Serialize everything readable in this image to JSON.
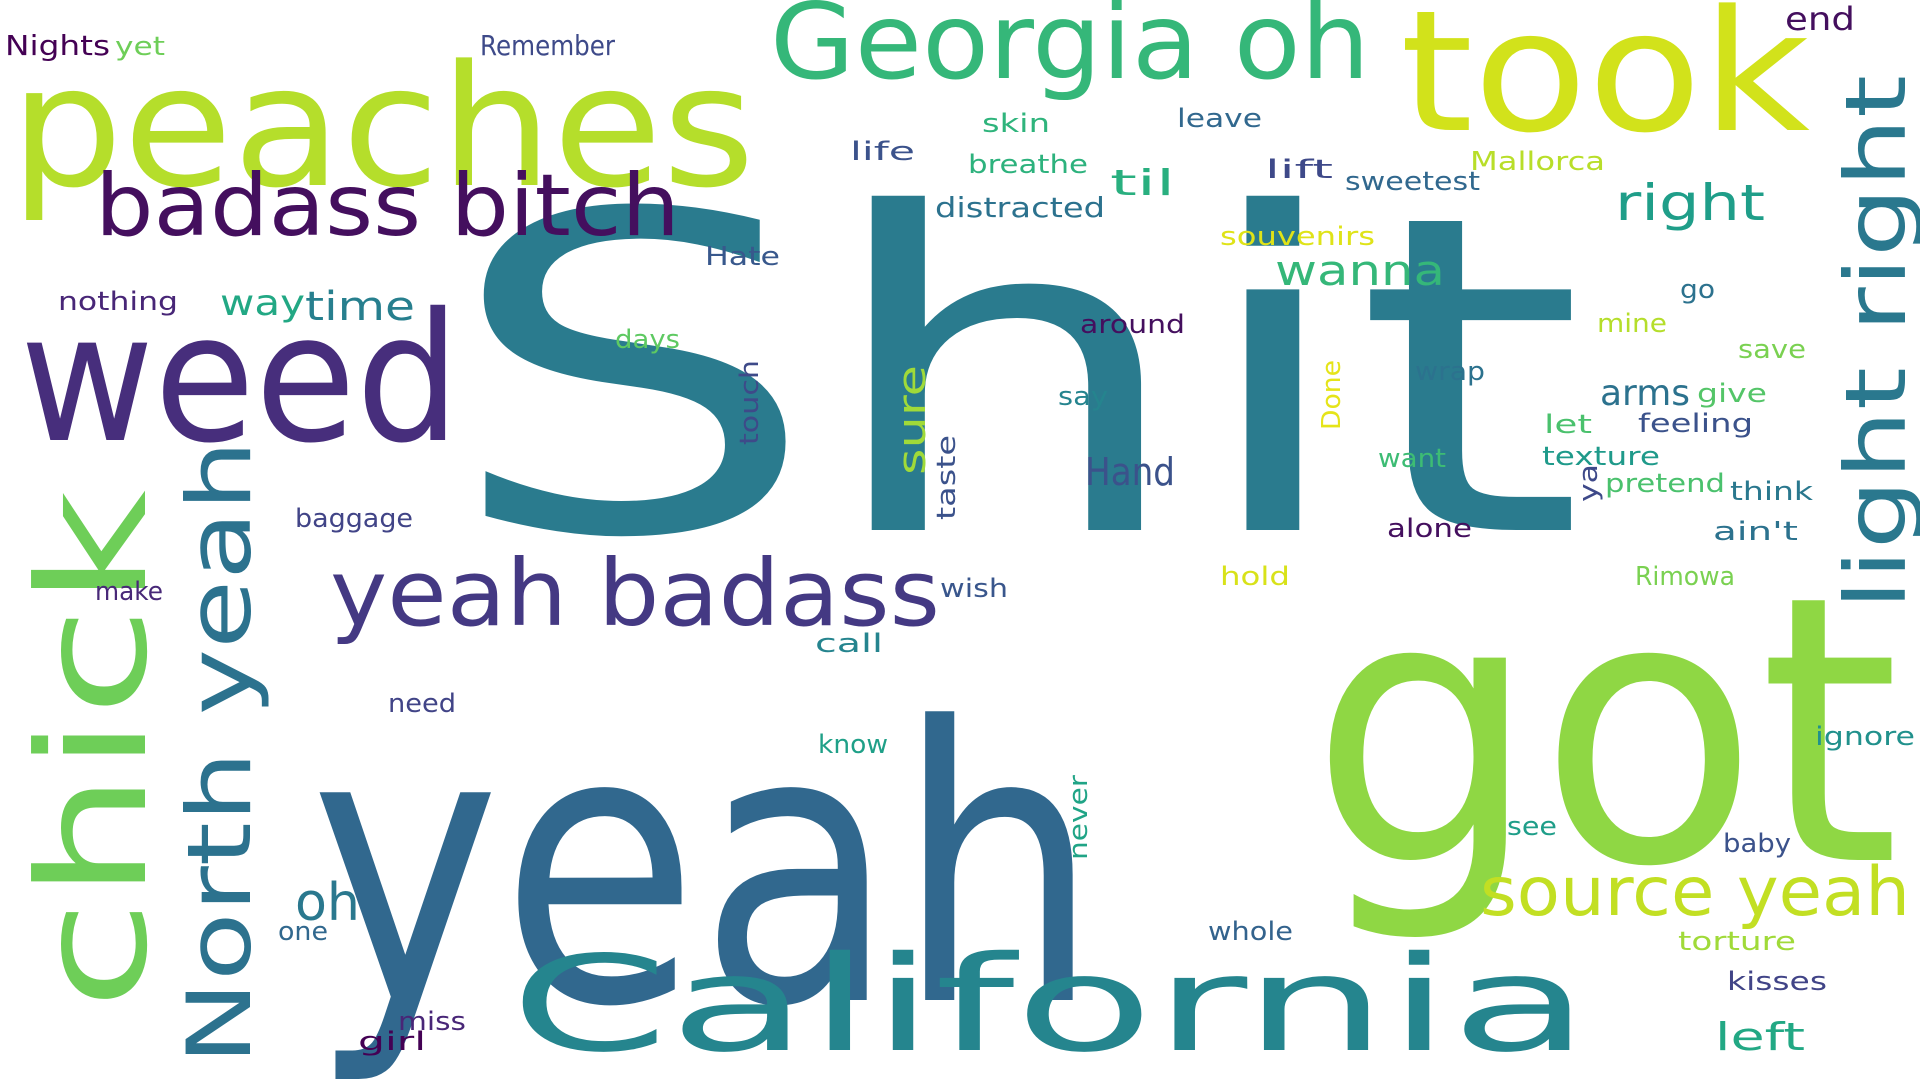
{
  "words": [
    {
      "text": "Shit",
      "color": "#2a7b8e"
    },
    {
      "text": "yeah",
      "color": "#31688e"
    },
    {
      "text": "got",
      "color": "#8fd744"
    },
    {
      "text": "took",
      "color": "#d2e21b"
    },
    {
      "text": "peaches",
      "color": "#b5de2b"
    },
    {
      "text": "weed",
      "color": "#472e7c"
    },
    {
      "text": "chick",
      "color": "#6ece58"
    },
    {
      "text": "California",
      "color": "#25858e"
    },
    {
      "text": "Georgia oh",
      "color": "#35b779"
    },
    {
      "text": "badass bitch",
      "color": "#440f5e"
    },
    {
      "text": "yeah badass",
      "color": "#443983"
    },
    {
      "text": "North yeah",
      "color": "#2c728e"
    },
    {
      "text": "light right",
      "color": "#2a788e"
    },
    {
      "text": "source yeah",
      "color": "#c2df23"
    },
    {
      "text": "right",
      "color": "#1f9e89"
    },
    {
      "text": "wanna",
      "color": "#35b779"
    },
    {
      "text": "left",
      "color": "#22a884"
    },
    {
      "text": "oh",
      "color": "#2a788e"
    },
    {
      "text": "sure",
      "color": "#a0da39"
    },
    {
      "text": "Hand",
      "color": "#3b528b"
    },
    {
      "text": "time",
      "color": "#277f8e"
    },
    {
      "text": "way",
      "color": "#22a884"
    },
    {
      "text": "til",
      "color": "#29af7f"
    },
    {
      "text": "arms",
      "color": "#2c728e"
    },
    {
      "text": "end",
      "color": "#440f5e"
    },
    {
      "text": "Nights",
      "color": "#440154"
    },
    {
      "text": "yet",
      "color": "#6ece58"
    },
    {
      "text": "Remember",
      "color": "#3e4a89"
    },
    {
      "text": "skin",
      "color": "#2fb47c"
    },
    {
      "text": "leave",
      "color": "#31688e"
    },
    {
      "text": "life",
      "color": "#3b528b"
    },
    {
      "text": "breathe",
      "color": "#2db27d"
    },
    {
      "text": "lift",
      "color": "#3e4989"
    },
    {
      "text": "sweetest",
      "color": "#31688e"
    },
    {
      "text": "Mallorca",
      "color": "#b8de29"
    },
    {
      "text": "distracted",
      "color": "#2c728e"
    },
    {
      "text": "souvenirs",
      "color": "#dfe318"
    },
    {
      "text": "Hate",
      "color": "#38588c"
    },
    {
      "text": "nothing",
      "color": "#482677"
    },
    {
      "text": "go",
      "color": "#2c728e"
    },
    {
      "text": "around",
      "color": "#440f5e"
    },
    {
      "text": "mine",
      "color": "#b5de2b"
    },
    {
      "text": "days",
      "color": "#5ec962"
    },
    {
      "text": "save",
      "color": "#7ad151"
    },
    {
      "text": "touch",
      "color": "#3e4a89"
    },
    {
      "text": "wrap",
      "color": "#2c728e"
    },
    {
      "text": "say",
      "color": "#25848e"
    },
    {
      "text": "Done",
      "color": "#e5e419"
    },
    {
      "text": "give",
      "color": "#54c568"
    },
    {
      "text": "let",
      "color": "#4ac16d"
    },
    {
      "text": "feeling",
      "color": "#3b528b"
    },
    {
      "text": "want",
      "color": "#3dbc74"
    },
    {
      "text": "texture",
      "color": "#1f9a8a"
    },
    {
      "text": "pretend",
      "color": "#4ac16d"
    },
    {
      "text": "think",
      "color": "#2a788e"
    },
    {
      "text": "ya",
      "color": "#3e4989"
    },
    {
      "text": "taste",
      "color": "#3b528b"
    },
    {
      "text": "baggage",
      "color": "#414487"
    },
    {
      "text": "alone",
      "color": "#440f5e"
    },
    {
      "text": "ain't",
      "color": "#2c728e"
    },
    {
      "text": "hold",
      "color": "#d8e219"
    },
    {
      "text": "Rimowa",
      "color": "#7ad151"
    },
    {
      "text": "make",
      "color": "#482878"
    },
    {
      "text": "wish",
      "color": "#39568c"
    },
    {
      "text": "call",
      "color": "#25848e"
    },
    {
      "text": "need",
      "color": "#414487"
    },
    {
      "text": "know",
      "color": "#1fa088"
    },
    {
      "text": "ignore",
      "color": "#21918c"
    },
    {
      "text": "never",
      "color": "#20a486"
    },
    {
      "text": "see",
      "color": "#1f9e89"
    },
    {
      "text": "baby",
      "color": "#3b528b"
    },
    {
      "text": "one",
      "color": "#31688e"
    },
    {
      "text": "whole",
      "color": "#33638d"
    },
    {
      "text": "torture",
      "color": "#a0da39"
    },
    {
      "text": "kisses",
      "color": "#414487"
    },
    {
      "text": "miss",
      "color": "#482677"
    },
    {
      "text": "girl",
      "color": "#440154"
    }
  ]
}
